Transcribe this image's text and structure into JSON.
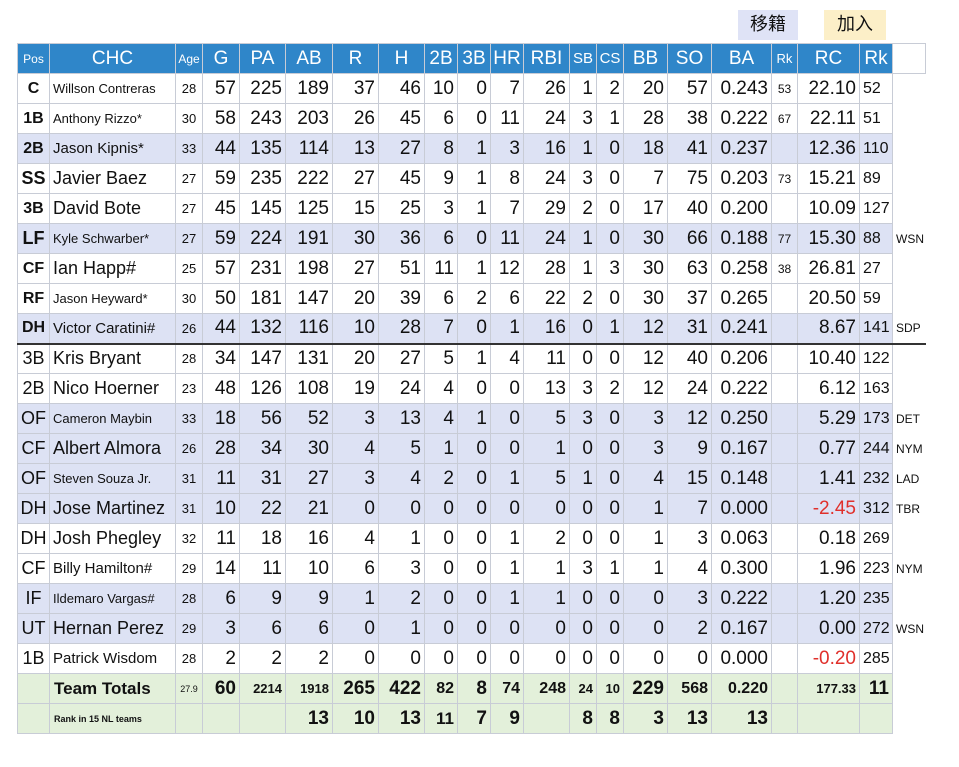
{
  "tags": {
    "tag1": "移籍",
    "tag2": "加入"
  },
  "headers": [
    "Pos",
    "CHC",
    "Age",
    "G",
    "PA",
    "AB",
    "R",
    "H",
    "2B",
    "3B",
    "HR",
    "RBI",
    "SB",
    "CS",
    "BB",
    "SO",
    "BA",
    "Rk",
    "RC",
    "Rk"
  ],
  "rows": [
    {
      "pos": "C",
      "name": "Willson Contreras",
      "age": "28",
      "g": "57",
      "pa": "225",
      "ab": "189",
      "r": "37",
      "h": "46",
      "d": "10",
      "t": "0",
      "hr": "7",
      "rbi": "26",
      "sb": "1",
      "cs": "2",
      "bb": "20",
      "so": "57",
      "ba": "0.243",
      "bark": "53",
      "rc": "22.10",
      "rcrk": "52",
      "team": ""
    },
    {
      "pos": "1B",
      "name": "Anthony Rizzo*",
      "age": "30",
      "g": "58",
      "pa": "243",
      "ab": "203",
      "r": "26",
      "h": "45",
      "d": "6",
      "t": "0",
      "hr": "11",
      "rbi": "24",
      "sb": "3",
      "cs": "1",
      "bb": "28",
      "so": "38",
      "ba": "0.222",
      "bark": "67",
      "rc": "22.11",
      "rcrk": "51",
      "team": ""
    },
    {
      "pos": "2B",
      "name": "Jason Kipnis*",
      "age": "33",
      "g": "44",
      "pa": "135",
      "ab": "114",
      "r": "13",
      "h": "27",
      "d": "8",
      "t": "1",
      "hr": "3",
      "rbi": "16",
      "sb": "1",
      "cs": "0",
      "bb": "18",
      "so": "41",
      "ba": "0.237",
      "bark": "",
      "rc": "12.36",
      "rcrk": "110",
      "team": ""
    },
    {
      "pos": "SS",
      "name": "Javier Baez",
      "age": "27",
      "g": "59",
      "pa": "235",
      "ab": "222",
      "r": "27",
      "h": "45",
      "d": "9",
      "t": "1",
      "hr": "8",
      "rbi": "24",
      "sb": "3",
      "cs": "0",
      "bb": "7",
      "so": "75",
      "ba": "0.203",
      "bark": "73",
      "rc": "15.21",
      "rcrk": "89",
      "team": ""
    },
    {
      "pos": "3B",
      "name": "David Bote",
      "age": "27",
      "g": "45",
      "pa": "145",
      "ab": "125",
      "r": "15",
      "h": "25",
      "d": "3",
      "t": "1",
      "hr": "7",
      "rbi": "29",
      "sb": "2",
      "cs": "0",
      "bb": "17",
      "so": "40",
      "ba": "0.200",
      "bark": "",
      "rc": "10.09",
      "rcrk": "127",
      "team": ""
    },
    {
      "pos": "LF",
      "name": "Kyle Schwarber*",
      "age": "27",
      "g": "59",
      "pa": "224",
      "ab": "191",
      "r": "30",
      "h": "36",
      "d": "6",
      "t": "0",
      "hr": "11",
      "rbi": "24",
      "sb": "1",
      "cs": "0",
      "bb": "30",
      "so": "66",
      "ba": "0.188",
      "bark": "77",
      "rc": "15.30",
      "rcrk": "88",
      "team": "WSN"
    },
    {
      "pos": "CF",
      "name": "Ian Happ#",
      "age": "25",
      "g": "57",
      "pa": "231",
      "ab": "198",
      "r": "27",
      "h": "51",
      "d": "11",
      "t": "1",
      "hr": "12",
      "rbi": "28",
      "sb": "1",
      "cs": "3",
      "bb": "30",
      "so": "63",
      "ba": "0.258",
      "bark": "38",
      "rc": "26.81",
      "rcrk": "27",
      "team": ""
    },
    {
      "pos": "RF",
      "name": "Jason Heyward*",
      "age": "30",
      "g": "50",
      "pa": "181",
      "ab": "147",
      "r": "20",
      "h": "39",
      "d": "6",
      "t": "2",
      "hr": "6",
      "rbi": "22",
      "sb": "2",
      "cs": "0",
      "bb": "30",
      "so": "37",
      "ba": "0.265",
      "bark": "",
      "rc": "20.50",
      "rcrk": "59",
      "team": ""
    },
    {
      "pos": "DH",
      "name": "Victor Caratini#",
      "age": "26",
      "g": "44",
      "pa": "132",
      "ab": "116",
      "r": "10",
      "h": "28",
      "d": "7",
      "t": "0",
      "hr": "1",
      "rbi": "16",
      "sb": "0",
      "cs": "1",
      "bb": "12",
      "so": "31",
      "ba": "0.241",
      "bark": "",
      "rc": "8.67",
      "rcrk": "141",
      "team": "SDP"
    },
    {
      "pos": "3B",
      "name": "Kris Bryant",
      "age": "28",
      "g": "34",
      "pa": "147",
      "ab": "131",
      "r": "20",
      "h": "27",
      "d": "5",
      "t": "1",
      "hr": "4",
      "rbi": "11",
      "sb": "0",
      "cs": "0",
      "bb": "12",
      "so": "40",
      "ba": "0.206",
      "bark": "",
      "rc": "10.40",
      "rcrk": "122",
      "team": ""
    },
    {
      "pos": "2B",
      "name": "Nico Hoerner",
      "age": "23",
      "g": "48",
      "pa": "126",
      "ab": "108",
      "r": "19",
      "h": "24",
      "d": "4",
      "t": "0",
      "hr": "0",
      "rbi": "13",
      "sb": "3",
      "cs": "2",
      "bb": "12",
      "so": "24",
      "ba": "0.222",
      "bark": "",
      "rc": "6.12",
      "rcrk": "163",
      "team": ""
    },
    {
      "pos": "OF",
      "name": "Cameron Maybin",
      "age": "33",
      "g": "18",
      "pa": "56",
      "ab": "52",
      "r": "3",
      "h": "13",
      "d": "4",
      "t": "1",
      "hr": "0",
      "rbi": "5",
      "sb": "3",
      "cs": "0",
      "bb": "3",
      "so": "12",
      "ba": "0.250",
      "bark": "",
      "rc": "5.29",
      "rcrk": "173",
      "team": "DET"
    },
    {
      "pos": "CF",
      "name": "Albert Almora",
      "age": "26",
      "g": "28",
      "pa": "34",
      "ab": "30",
      "r": "4",
      "h": "5",
      "d": "1",
      "t": "0",
      "hr": "0",
      "rbi": "1",
      "sb": "0",
      "cs": "0",
      "bb": "3",
      "so": "9",
      "ba": "0.167",
      "bark": "",
      "rc": "0.77",
      "rcrk": "244",
      "team": "NYM"
    },
    {
      "pos": "OF",
      "name": "Steven Souza Jr.",
      "age": "31",
      "g": "11",
      "pa": "31",
      "ab": "27",
      "r": "3",
      "h": "4",
      "d": "2",
      "t": "0",
      "hr": "1",
      "rbi": "5",
      "sb": "1",
      "cs": "0",
      "bb": "4",
      "so": "15",
      "ba": "0.148",
      "bark": "",
      "rc": "1.41",
      "rcrk": "232",
      "team": "LAD"
    },
    {
      "pos": "DH",
      "name": "Jose Martinez",
      "age": "31",
      "g": "10",
      "pa": "22",
      "ab": "21",
      "r": "0",
      "h": "0",
      "d": "0",
      "t": "0",
      "hr": "0",
      "rbi": "0",
      "sb": "0",
      "cs": "0",
      "bb": "1",
      "so": "7",
      "ba": "0.000",
      "bark": "",
      "rc": "-2.45",
      "rcrk": "312",
      "team": "TBR"
    },
    {
      "pos": "DH",
      "name": "Josh Phegley",
      "age": "32",
      "g": "11",
      "pa": "18",
      "ab": "16",
      "r": "4",
      "h": "1",
      "d": "0",
      "t": "0",
      "hr": "1",
      "rbi": "2",
      "sb": "0",
      "cs": "0",
      "bb": "1",
      "so": "3",
      "ba": "0.063",
      "bark": "",
      "rc": "0.18",
      "rcrk": "269",
      "team": ""
    },
    {
      "pos": "CF",
      "name": "Billy Hamilton#",
      "age": "29",
      "g": "14",
      "pa": "11",
      "ab": "10",
      "r": "6",
      "h": "3",
      "d": "0",
      "t": "0",
      "hr": "1",
      "rbi": "1",
      "sb": "3",
      "cs": "1",
      "bb": "1",
      "so": "4",
      "ba": "0.300",
      "bark": "",
      "rc": "1.96",
      "rcrk": "223",
      "team": "NYM"
    },
    {
      "pos": "IF",
      "name": "Ildemaro Vargas#",
      "age": "28",
      "g": "6",
      "pa": "9",
      "ab": "9",
      "r": "1",
      "h": "2",
      "d": "0",
      "t": "0",
      "hr": "1",
      "rbi": "1",
      "sb": "0",
      "cs": "0",
      "bb": "0",
      "so": "3",
      "ba": "0.222",
      "bark": "",
      "rc": "1.20",
      "rcrk": "235",
      "team": ""
    },
    {
      "pos": "UT",
      "name": "Hernan Perez",
      "age": "29",
      "g": "3",
      "pa": "6",
      "ab": "6",
      "r": "0",
      "h": "1",
      "d": "0",
      "t": "0",
      "hr": "0",
      "rbi": "0",
      "sb": "0",
      "cs": "0",
      "bb": "0",
      "so": "2",
      "ba": "0.167",
      "bark": "",
      "rc": "0.00",
      "rcrk": "272",
      "team": "WSN"
    },
    {
      "pos": "1B",
      "name": "Patrick Wisdom",
      "age": "28",
      "g": "2",
      "pa": "2",
      "ab": "2",
      "r": "0",
      "h": "0",
      "d": "0",
      "t": "0",
      "hr": "0",
      "rbi": "0",
      "sb": "0",
      "cs": "0",
      "bb": "0",
      "so": "0",
      "ba": "0.000",
      "bark": "",
      "rc": "-0.20",
      "rcrk": "285",
      "team": ""
    }
  ],
  "totals": {
    "label": "Team Totals",
    "age": "27.9",
    "g": "60",
    "pa": "2214",
    "ab": "1918",
    "r": "265",
    "h": "422",
    "d": "82",
    "t": "8",
    "hr": "74",
    "rbi": "248",
    "sb": "24",
    "cs": "10",
    "bb": "229",
    "so": "568",
    "ba": "0.220",
    "rc": "177.33",
    "rcrk": "11"
  },
  "ranks": {
    "label": "Rank in 15 NL teams",
    "ab": "13",
    "r": "10",
    "h": "13",
    "d": "11",
    "t": "7",
    "hr": "9",
    "sb": "8",
    "cs": "8",
    "bb": "3",
    "so": "13",
    "ba": "13"
  },
  "colors": {
    "header": "#2f86c9",
    "row_alt": "#dde2f4",
    "totals": "#e3f0da",
    "negative": "#e0302b"
  }
}
